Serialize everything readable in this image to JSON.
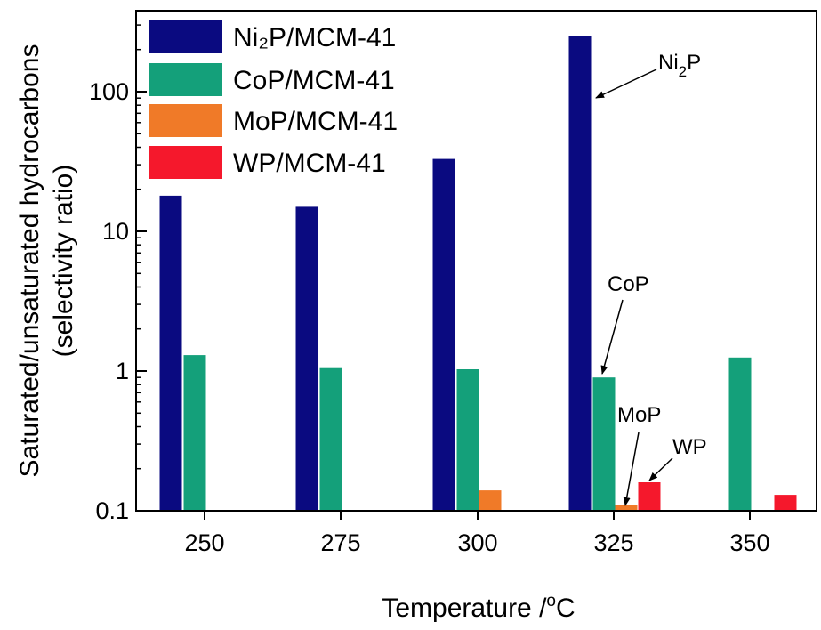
{
  "chart_data": {
    "type": "bar",
    "scale_y": "log",
    "ylim": [
      0.1,
      400
    ],
    "categories": [
      "250",
      "275",
      "300",
      "325",
      "350"
    ],
    "series": [
      {
        "name": "Ni₂P/MCM-41",
        "color": "#0a0a80",
        "values": [
          18,
          15,
          33,
          250,
          null
        ]
      },
      {
        "name": "CoP/MCM-41",
        "color": "#14a07a",
        "values": [
          1.3,
          1.05,
          1.03,
          0.9,
          1.25
        ]
      },
      {
        "name": "MoP/MCM-41",
        "color": "#f07a28",
        "values": [
          null,
          null,
          0.14,
          0.11,
          null
        ]
      },
      {
        "name": "WP/MCM-41",
        "color": "#f5182c",
        "values": [
          null,
          null,
          null,
          0.16,
          0.13
        ]
      }
    ],
    "y_ticks": [
      "0.1",
      "1",
      "10",
      "100"
    ],
    "xlabel": "Temperature /",
    "xlabel_sup": "o",
    "xlabel_unit": "C",
    "ylabel_line1": "Saturated/unsaturated hydrocarbons",
    "ylabel_line2": "(selectivity ratio)",
    "legend_position": "top-left",
    "annotations": [
      {
        "text": "Ni",
        "sub": "2",
        "suffix": "P",
        "category": "325",
        "series": 0
      },
      {
        "text": "CoP",
        "category": "325",
        "series": 1
      },
      {
        "text": "MoP",
        "category": "325",
        "series": 2
      },
      {
        "text": "WP",
        "category": "325",
        "series": 3
      }
    ]
  }
}
